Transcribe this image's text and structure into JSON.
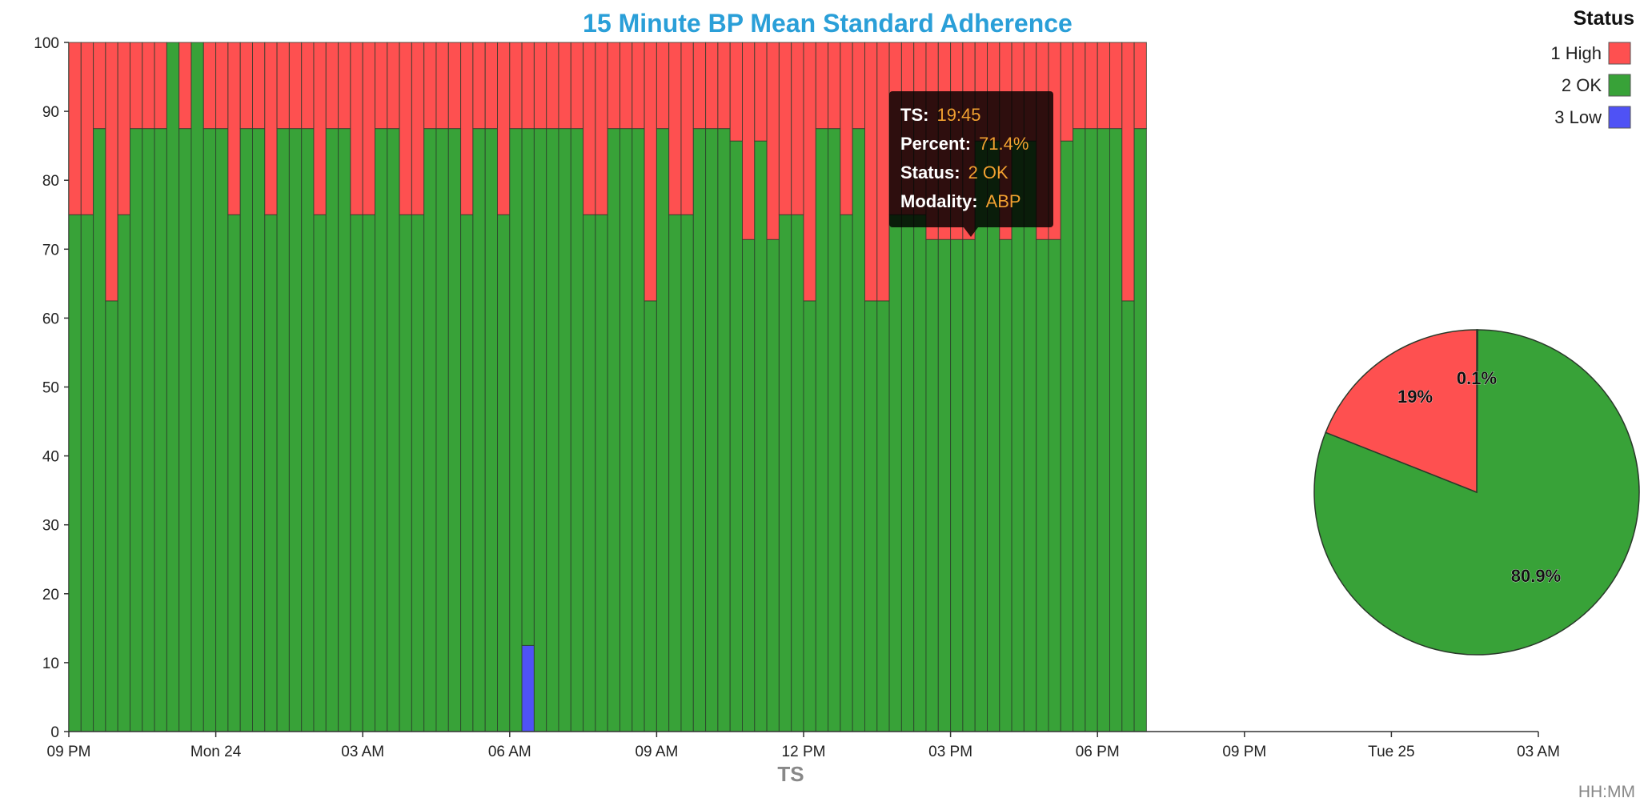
{
  "colors": {
    "high": "#fe5050",
    "ok": "#38a238",
    "low": "#4f52f5",
    "title": "#2a9fd8"
  },
  "chart_data": [
    {
      "type": "bar",
      "stacked": true,
      "title": "15 Minute BP Mean Standard Adherence",
      "xlabel": "TS",
      "ylabel": "",
      "ylim": [
        0,
        100
      ],
      "y_ticks": [
        0,
        10,
        20,
        30,
        40,
        50,
        60,
        70,
        80,
        90,
        100
      ],
      "x_ticks": [
        "09 PM",
        "Mon 24",
        "03 AM",
        "06 AM",
        "09 AM",
        "12 PM",
        "03 PM",
        "06 PM",
        "09 PM",
        "Tue 25",
        "03 AM"
      ],
      "x_start": "Sun 23 21:00",
      "interval_minutes": 15,
      "series": [
        {
          "name": "1 High",
          "values": [
            25,
            25,
            12.5,
            37.5,
            25,
            12.5,
            12.5,
            12.5,
            0,
            12.5,
            0,
            12.5,
            12.5,
            25,
            12.5,
            12.5,
            25,
            12.5,
            12.5,
            12.5,
            25,
            12.5,
            12.5,
            25,
            25,
            12.5,
            12.5,
            25,
            25,
            12.5,
            12.5,
            12.5,
            25,
            12.5,
            12.5,
            25,
            12.5,
            12.5,
            12.5,
            12.5,
            12.5,
            12.5,
            25,
            25,
            12.5,
            12.5,
            12.5,
            37.5,
            12.5,
            25,
            25,
            12.5,
            12.5,
            12.5,
            14.3,
            28.6,
            14.3,
            28.6,
            25,
            25,
            37.5,
            12.5,
            12.5,
            25,
            12.5,
            37.5,
            37.5,
            25,
            25,
            25,
            28.6,
            28.6,
            28.6,
            28.6,
            14.3,
            14.3,
            28.6,
            14.3,
            14.3,
            28.6,
            28.6,
            14.3,
            12.5,
            12.5,
            12.5,
            12.5,
            37.5,
            12.5
          ]
        },
        {
          "name": "2 OK",
          "values": [
            75,
            75,
            87.5,
            62.5,
            75,
            87.5,
            87.5,
            87.5,
            100,
            87.5,
            100,
            87.5,
            87.5,
            75,
            87.5,
            87.5,
            75,
            87.5,
            87.5,
            87.5,
            75,
            87.5,
            87.5,
            75,
            75,
            87.5,
            87.5,
            75,
            75,
            87.5,
            87.5,
            87.5,
            75,
            87.5,
            87.5,
            75,
            87.5,
            75,
            87.5,
            87.5,
            87.5,
            87.5,
            75,
            75,
            87.5,
            87.5,
            87.5,
            62.5,
            87.5,
            75,
            75,
            87.5,
            87.5,
            87.5,
            85.7,
            71.4,
            85.7,
            71.4,
            75,
            75,
            62.5,
            87.5,
            87.5,
            75,
            87.5,
            62.5,
            62.5,
            75,
            75,
            75,
            71.4,
            71.4,
            71.4,
            71.4,
            85.7,
            85.7,
            71.4,
            85.7,
            85.7,
            71.4,
            71.4,
            85.7,
            87.5,
            87.5,
            87.5,
            87.5,
            62.5,
            87.5
          ]
        },
        {
          "name": "3 Low",
          "values": [
            0,
            0,
            0,
            0,
            0,
            0,
            0,
            0,
            0,
            0,
            0,
            0,
            0,
            0,
            0,
            0,
            0,
            0,
            0,
            0,
            0,
            0,
            0,
            0,
            0,
            0,
            0,
            0,
            0,
            0,
            0,
            0,
            0,
            0,
            0,
            0,
            0,
            12.5,
            0,
            0,
            0,
            0,
            0,
            0,
            0,
            0,
            0,
            0,
            0,
            0,
            0,
            0,
            0,
            0,
            0,
            0,
            0,
            0,
            0,
            0,
            0,
            0,
            0,
            0,
            0,
            0,
            0,
            0,
            0,
            0,
            0,
            0,
            0,
            0,
            0,
            0,
            0,
            0,
            0,
            0,
            0,
            0,
            0,
            0,
            0,
            0,
            0,
            0
          ]
        }
      ]
    },
    {
      "type": "pie",
      "slices": [
        {
          "name": "3 Low",
          "value": 0.1,
          "label": "0.1%"
        },
        {
          "name": "2 OK",
          "value": 80.9,
          "label": "80.9%"
        },
        {
          "name": "1 High",
          "value": 19,
          "label": "19%"
        }
      ]
    }
  ],
  "legend": {
    "title": "Status",
    "placement": "top-right",
    "items": [
      {
        "label": "1 High",
        "color": "#fe5050"
      },
      {
        "label": "2 OK",
        "color": "#38a238"
      },
      {
        "label": "3 Low",
        "color": "#4f52f5"
      }
    ]
  },
  "tooltip": {
    "rows": [
      {
        "key": "TS:",
        "value": "19:45"
      },
      {
        "key": "Percent:",
        "value": "71.4%"
      },
      {
        "key": "Status:",
        "value": "2 OK"
      },
      {
        "key": "Modality:",
        "value": "ABP"
      }
    ]
  },
  "footer": {
    "format_label": "HH:MM"
  }
}
